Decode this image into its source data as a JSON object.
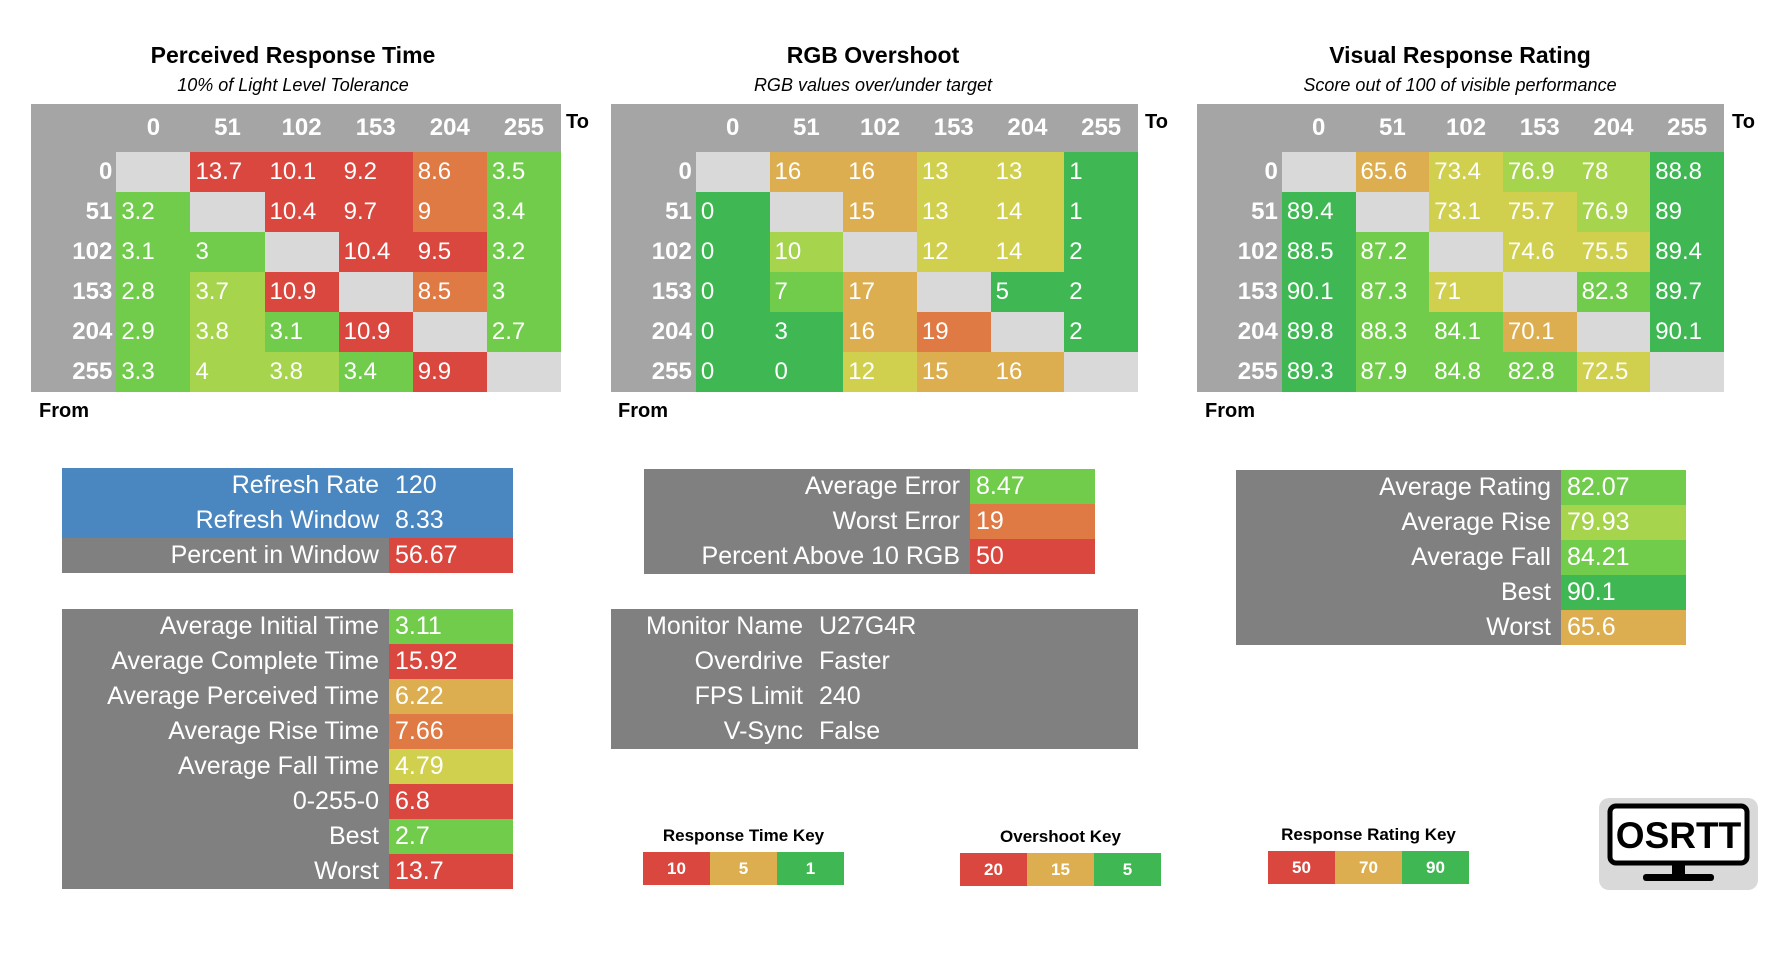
{
  "colors": {
    "grey_header": "#a5a5a5",
    "grey_panel": "#808080",
    "blue": "#4a86bf",
    "red": "#d9473f",
    "orange": "#e07a45",
    "amber": "#dcae50",
    "yellow": "#d0d04e",
    "lime": "#a6d44c",
    "green": "#72cc4b",
    "dgreen": "#3fb854",
    "empty": "#d9d9d9"
  },
  "perceived": {
    "title": "Perceived Response Time",
    "subtitle": "10% of Light Level Tolerance",
    "to_label": "To",
    "from_label": "From",
    "headers": [
      "0",
      "51",
      "102",
      "153",
      "204",
      "255"
    ],
    "rows": [
      {
        "label": "0",
        "cells": [
          "",
          "13.7",
          "10.1",
          "9.2",
          "8.6",
          "3.5"
        ]
      },
      {
        "label": "51",
        "cells": [
          "3.2",
          "",
          "10.4",
          "9.7",
          "9",
          "3.4"
        ]
      },
      {
        "label": "102",
        "cells": [
          "3.1",
          "3",
          "",
          "10.4",
          "9.5",
          "3.2"
        ]
      },
      {
        "label": "153",
        "cells": [
          "2.8",
          "3.7",
          "10.9",
          "",
          "8.5",
          "3"
        ]
      },
      {
        "label": "204",
        "cells": [
          "2.9",
          "3.8",
          "3.1",
          "10.9",
          "",
          "2.7"
        ]
      },
      {
        "label": "255",
        "cells": [
          "3.3",
          "4",
          "3.8",
          "3.4",
          "9.9",
          ""
        ]
      }
    ],
    "cell_colors": [
      [
        "empty",
        "red",
        "red",
        "red",
        "orange",
        "green"
      ],
      [
        "green",
        "empty",
        "red",
        "red",
        "orange",
        "green"
      ],
      [
        "green",
        "green",
        "empty",
        "red",
        "red",
        "green"
      ],
      [
        "green",
        "lime",
        "red",
        "empty",
        "orange",
        "green"
      ],
      [
        "green",
        "lime",
        "green",
        "red",
        "empty",
        "green"
      ],
      [
        "green",
        "lime",
        "lime",
        "green",
        "red",
        "empty"
      ]
    ]
  },
  "overshoot": {
    "title": "RGB Overshoot",
    "subtitle": "RGB values over/under target",
    "to_label": "To",
    "from_label": "From",
    "headers": [
      "0",
      "51",
      "102",
      "153",
      "204",
      "255"
    ],
    "rows": [
      {
        "label": "0",
        "cells": [
          "",
          "16",
          "16",
          "13",
          "13",
          "1"
        ]
      },
      {
        "label": "51",
        "cells": [
          "0",
          "",
          "15",
          "13",
          "14",
          "1"
        ]
      },
      {
        "label": "102",
        "cells": [
          "0",
          "10",
          "",
          "12",
          "14",
          "2"
        ]
      },
      {
        "label": "153",
        "cells": [
          "0",
          "7",
          "17",
          "",
          "5",
          "2"
        ]
      },
      {
        "label": "204",
        "cells": [
          "0",
          "3",
          "16",
          "19",
          "",
          "2"
        ]
      },
      {
        "label": "255",
        "cells": [
          "0",
          "0",
          "12",
          "15",
          "16",
          ""
        ]
      }
    ],
    "cell_colors": [
      [
        "empty",
        "amber",
        "amber",
        "yellow",
        "yellow",
        "dgreen"
      ],
      [
        "dgreen",
        "empty",
        "amber",
        "yellow",
        "yellow",
        "dgreen"
      ],
      [
        "dgreen",
        "lime",
        "empty",
        "yellow",
        "yellow",
        "dgreen"
      ],
      [
        "dgreen",
        "green",
        "amber",
        "empty",
        "dgreen",
        "dgreen"
      ],
      [
        "dgreen",
        "dgreen",
        "amber",
        "orange",
        "empty",
        "dgreen"
      ],
      [
        "dgreen",
        "dgreen",
        "yellow",
        "amber",
        "amber",
        "empty"
      ]
    ]
  },
  "rating": {
    "title": "Visual Response Rating",
    "subtitle": "Score out of 100 of visible performance",
    "to_label": "To",
    "from_label": "From",
    "headers": [
      "0",
      "51",
      "102",
      "153",
      "204",
      "255"
    ],
    "rows": [
      {
        "label": "0",
        "cells": [
          "",
          "65.6",
          "73.4",
          "76.9",
          "78",
          "88.8"
        ]
      },
      {
        "label": "51",
        "cells": [
          "89.4",
          "",
          "73.1",
          "75.7",
          "76.9",
          "89"
        ]
      },
      {
        "label": "102",
        "cells": [
          "88.5",
          "87.2",
          "",
          "74.6",
          "75.5",
          "89.4"
        ]
      },
      {
        "label": "153",
        "cells": [
          "90.1",
          "87.3",
          "71",
          "",
          "82.3",
          "89.7"
        ]
      },
      {
        "label": "204",
        "cells": [
          "89.8",
          "88.3",
          "84.1",
          "70.1",
          "",
          "90.1"
        ]
      },
      {
        "label": "255",
        "cells": [
          "89.3",
          "87.9",
          "84.8",
          "82.8",
          "72.5",
          ""
        ]
      }
    ],
    "cell_colors": [
      [
        "empty",
        "amber",
        "yellow",
        "lime",
        "lime",
        "dgreen"
      ],
      [
        "dgreen",
        "empty",
        "yellow",
        "yellow",
        "lime",
        "dgreen"
      ],
      [
        "dgreen",
        "green",
        "empty",
        "yellow",
        "yellow",
        "dgreen"
      ],
      [
        "dgreen",
        "green",
        "yellow",
        "empty",
        "green",
        "dgreen"
      ],
      [
        "dgreen",
        "green",
        "green",
        "amber",
        "empty",
        "dgreen"
      ],
      [
        "dgreen",
        "green",
        "green",
        "green",
        "yellow",
        "empty"
      ]
    ]
  },
  "refresh_panel": [
    {
      "label": "Refresh Rate",
      "value": "120",
      "label_color": "blue",
      "value_color": "blue"
    },
    {
      "label": "Refresh Window",
      "value": "8.33",
      "label_color": "blue",
      "value_color": "blue"
    },
    {
      "label": "Percent in Window",
      "value": "56.67",
      "label_color": "grey_panel",
      "value_color": "red"
    }
  ],
  "time_panel": [
    {
      "label": "Average Initial Time",
      "value": "3.11",
      "value_color": "green"
    },
    {
      "label": "Average Complete Time",
      "value": "15.92",
      "value_color": "red"
    },
    {
      "label": "Average Perceived Time",
      "value": "6.22",
      "value_color": "amber"
    },
    {
      "label": "Average Rise Time",
      "value": "7.66",
      "value_color": "orange"
    },
    {
      "label": "Average Fall Time",
      "value": "4.79",
      "value_color": "yellow"
    },
    {
      "label": "0-255-0",
      "value": "6.8",
      "value_color": "red"
    },
    {
      "label": "Best",
      "value": "2.7",
      "value_color": "green"
    },
    {
      "label": "Worst",
      "value": "13.7",
      "value_color": "red"
    }
  ],
  "error_panel": [
    {
      "label": "Average Error",
      "value": "8.47",
      "value_color": "green"
    },
    {
      "label": "Worst Error",
      "value": "19",
      "value_color": "orange"
    },
    {
      "label": "Percent Above 10 RGB",
      "value": "50",
      "value_color": "red"
    }
  ],
  "monitor_panel": [
    {
      "label": "Monitor Name",
      "value": "U27G4R"
    },
    {
      "label": "Overdrive",
      "value": "Faster"
    },
    {
      "label": "FPS Limit",
      "value": "240"
    },
    {
      "label": "V-Sync",
      "value": "False"
    }
  ],
  "rating_panel": [
    {
      "label": "Average Rating",
      "value": "82.07",
      "value_color": "green"
    },
    {
      "label": "Average Rise",
      "value": "79.93",
      "value_color": "lime"
    },
    {
      "label": "Average Fall",
      "value": "84.21",
      "value_color": "green"
    },
    {
      "label": "Best",
      "value": "90.1",
      "value_color": "dgreen"
    },
    {
      "label": "Worst",
      "value": "65.6",
      "value_color": "amber"
    }
  ],
  "keys": {
    "response_time": {
      "title": "Response Time Key",
      "cells": [
        {
          "text": "10",
          "color": "red"
        },
        {
          "text": "5",
          "color": "amber"
        },
        {
          "text": "1",
          "color": "dgreen"
        }
      ]
    },
    "overshoot": {
      "title": "Overshoot Key",
      "cells": [
        {
          "text": "20",
          "color": "red"
        },
        {
          "text": "15",
          "color": "amber"
        },
        {
          "text": "5",
          "color": "dgreen"
        }
      ]
    },
    "rating": {
      "title": "Response Rating Key",
      "cells": [
        {
          "text": "50",
          "color": "red"
        },
        {
          "text": "70",
          "color": "amber"
        },
        {
          "text": "90",
          "color": "dgreen"
        }
      ]
    }
  },
  "logo": {
    "text": "OSRTT",
    "icon": "monitor-logo-icon"
  }
}
